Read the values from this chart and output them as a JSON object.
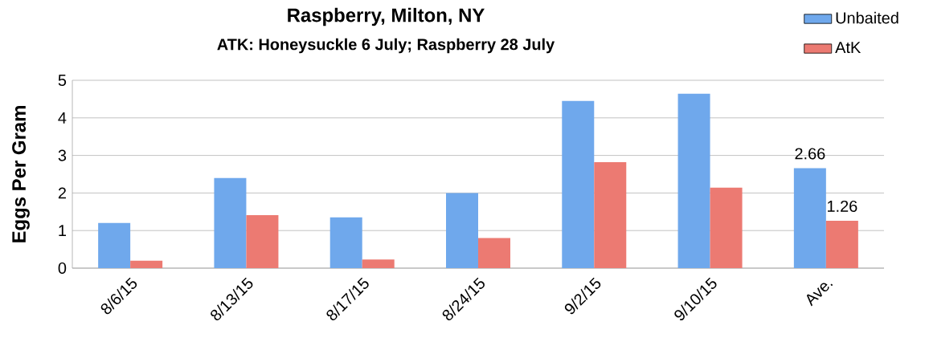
{
  "chart_data": {
    "type": "bar",
    "title": "Raspberry, Milton, NY",
    "subtitle": "ATK: Honeysuckle 6 July; Raspberry 28 July",
    "ylabel": "Eggs Per Gram",
    "categories": [
      "8/6/15",
      "8/13/15",
      "8/17/15",
      "8/24/15",
      "9/2/15",
      "9/10/15",
      "Ave."
    ],
    "series": [
      {
        "name": "Unbaited",
        "color": "#6fa8ec",
        "values": [
          1.2,
          2.4,
          1.35,
          2.0,
          4.45,
          4.64,
          2.66
        ],
        "value_labels": [
          null,
          null,
          null,
          null,
          null,
          null,
          "2.66"
        ]
      },
      {
        "name": "AtK",
        "color": "#ec7a72",
        "values": [
          0.2,
          1.41,
          0.23,
          0.8,
          2.82,
          2.14,
          1.26
        ],
        "value_labels": [
          null,
          null,
          null,
          null,
          null,
          null,
          "1.26"
        ]
      }
    ],
    "ylim": [
      0,
      5
    ],
    "yticks": [
      0,
      1,
      2,
      3,
      4,
      5
    ],
    "grid": "y",
    "legend": "top right"
  }
}
